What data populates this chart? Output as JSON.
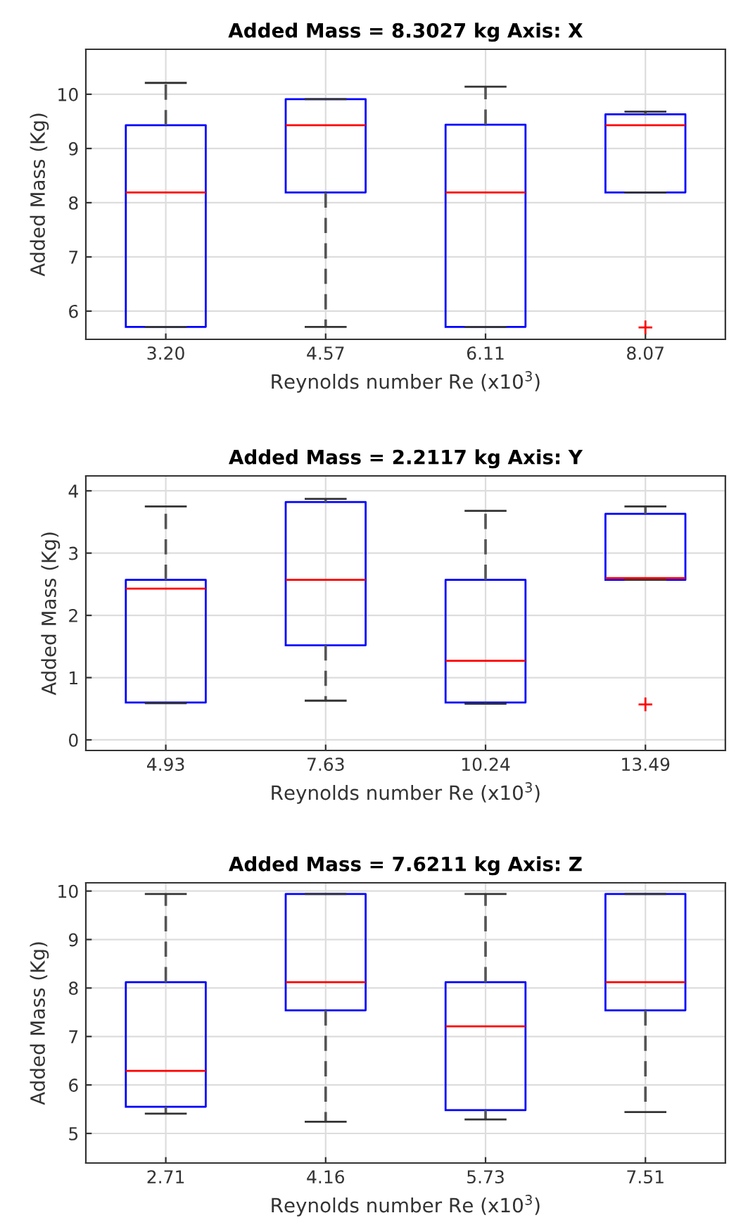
{
  "chart_data": [
    {
      "type": "box",
      "title": "Added Mass = 8.3027 kg Axis: X",
      "xlabel": "Reynolds number Re (x10$^{3}$)",
      "ylabel": "Added Mass (Kg)",
      "categories": [
        "3.20",
        "4.57",
        "6.11",
        "8.07"
      ],
      "ylim": [
        5.48,
        10.83
      ],
      "yticks": [
        6,
        7,
        8,
        9,
        10
      ],
      "grid": true,
      "boxes": [
        {
          "low": 5.71,
          "q1": 5.71,
          "median": 8.19,
          "q3": 9.43,
          "high": 10.21
        },
        {
          "low": 5.71,
          "q1": 8.19,
          "median": 9.43,
          "q3": 9.91,
          "high": 9.91
        },
        {
          "low": 5.71,
          "q1": 5.71,
          "median": 8.19,
          "q3": 9.44,
          "high": 10.14
        },
        {
          "low": 8.19,
          "q1": 8.19,
          "median": 9.43,
          "q3": 9.63,
          "high": 9.68,
          "outliers": [
            5.7
          ]
        }
      ]
    },
    {
      "type": "box",
      "title": "Added Mass = 2.2117 kg Axis: Y",
      "xlabel": "Reynolds number Re (x10$^{3}$)",
      "ylabel": "Added Mass (Kg)",
      "categories": [
        "4.93",
        "7.63",
        "10.24",
        "13.49"
      ],
      "ylim": [
        -0.17,
        4.24
      ],
      "yticks": [
        0,
        1,
        2,
        3,
        4
      ],
      "grid": true,
      "boxes": [
        {
          "low": 0.59,
          "q1": 0.6,
          "median": 2.43,
          "q3": 2.57,
          "high": 3.75
        },
        {
          "low": 0.63,
          "q1": 1.52,
          "median": 2.57,
          "q3": 3.82,
          "high": 3.87
        },
        {
          "low": 0.58,
          "q1": 0.6,
          "median": 1.27,
          "q3": 2.57,
          "high": 3.68
        },
        {
          "low": 2.57,
          "q1": 2.57,
          "median": 2.6,
          "q3": 3.63,
          "high": 3.75,
          "outliers": [
            0.57
          ]
        }
      ]
    },
    {
      "type": "box",
      "title": "Added Mass = 7.6211 kg Axis: Z",
      "xlabel": "Reynolds number Re (x10$^{3}$)",
      "ylabel": "Added Mass (Kg)",
      "categories": [
        "2.71",
        "4.16",
        "5.73",
        "7.51"
      ],
      "ylim": [
        4.39,
        10.17
      ],
      "yticks": [
        5,
        6,
        7,
        8,
        9,
        10
      ],
      "grid": true,
      "boxes": [
        {
          "low": 5.41,
          "q1": 5.55,
          "median": 6.29,
          "q3": 8.12,
          "high": 9.94
        },
        {
          "low": 5.24,
          "q1": 7.54,
          "median": 8.12,
          "q3": 9.94,
          "high": 9.94
        },
        {
          "low": 5.29,
          "q1": 5.48,
          "median": 7.21,
          "q3": 8.12,
          "high": 9.94
        },
        {
          "low": 5.44,
          "q1": 7.54,
          "median": 8.12,
          "q3": 9.94,
          "high": 9.94
        }
      ]
    }
  ]
}
